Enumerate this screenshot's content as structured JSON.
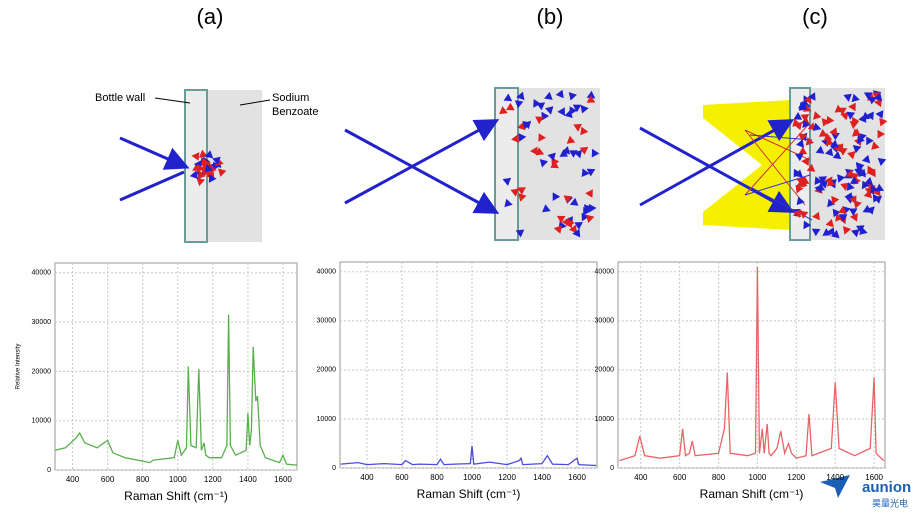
{
  "panel_labels": [
    "(a)",
    "(b)",
    "(c)"
  ],
  "diagram_labels": {
    "bottle_wall": "Bottle wall",
    "sodium_benzoate": "Sodium Benzoate"
  },
  "watermark": {
    "brand": "aunion",
    "subtitle": "昊量光电"
  },
  "chart_data": [
    {
      "type": "line",
      "color": "#5aae4e",
      "xlabel": "Raman Shift (cm⁻¹)",
      "ylabel": "Relative Intensity",
      "grid": true,
      "xlim": [
        300,
        1680
      ],
      "ylim": [
        0,
        42000
      ],
      "xticks": [
        400,
        600,
        800,
        1000,
        1200,
        1400,
        1600
      ],
      "yticks": [
        0,
        10000,
        20000,
        30000,
        40000
      ],
      "x": [
        300,
        360,
        420,
        440,
        470,
        540,
        600,
        630,
        700,
        800,
        840,
        860,
        980,
        1000,
        1020,
        1050,
        1060,
        1075,
        1105,
        1120,
        1135,
        1150,
        1160,
        1180,
        1250,
        1280,
        1290,
        1300,
        1330,
        1390,
        1400,
        1410,
        1420,
        1430,
        1445,
        1455,
        1470,
        1500,
        1580,
        1600,
        1620,
        1680
      ],
      "values": [
        4000,
        4500,
        6500,
        7500,
        5500,
        4500,
        6000,
        3500,
        2500,
        1800,
        1500,
        2000,
        2500,
        6000,
        3000,
        4500,
        21000,
        5000,
        4500,
        20500,
        4000,
        5500,
        3000,
        2500,
        2500,
        5000,
        31500,
        5000,
        3000,
        4000,
        11500,
        5000,
        8000,
        25000,
        14000,
        15000,
        5000,
        2500,
        1500,
        3000,
        1200,
        1000
      ]
    },
    {
      "type": "line",
      "color": "#4a4ae0",
      "xlabel": "Raman Shift (cm⁻¹)",
      "grid": true,
      "xlim": [
        246,
        1714
      ],
      "ylim": [
        0,
        42000
      ],
      "xticks": [
        400,
        600,
        800,
        1000,
        1200,
        1400,
        1600
      ],
      "yticks": [
        0,
        10000,
        20000,
        30000,
        40000
      ],
      "x": [
        250,
        350,
        400,
        500,
        600,
        620,
        660,
        700,
        800,
        820,
        840,
        900,
        990,
        1000,
        1010,
        1100,
        1200,
        1270,
        1280,
        1290,
        1400,
        1430,
        1460,
        1550,
        1600,
        1610,
        1710
      ],
      "values": [
        800,
        1100,
        700,
        900,
        700,
        1500,
        700,
        800,
        700,
        1800,
        700,
        800,
        900,
        4500,
        800,
        1200,
        700,
        1500,
        2000,
        700,
        900,
        2500,
        800,
        700,
        2000,
        700,
        500
      ]
    },
    {
      "type": "line",
      "color": "#e86464",
      "xlabel": "Raman Shift (cm⁻¹)",
      "grid": true,
      "xlim": [
        283,
        1656
      ],
      "ylim": [
        0,
        42000
      ],
      "xticks": [
        400,
        600,
        800,
        1000,
        1200,
        1400,
        1600
      ],
      "yticks": [
        0,
        10000,
        20000,
        30000,
        40000
      ],
      "x": [
        290,
        370,
        395,
        420,
        500,
        600,
        615,
        630,
        650,
        665,
        680,
        800,
        830,
        845,
        860,
        950,
        990,
        1000,
        1010,
        1025,
        1035,
        1050,
        1060,
        1070,
        1100,
        1120,
        1140,
        1160,
        1175,
        1200,
        1250,
        1265,
        1280,
        1380,
        1400,
        1420,
        1500,
        1580,
        1600,
        1610,
        1650
      ],
      "values": [
        1500,
        2500,
        6500,
        2500,
        2000,
        2500,
        8000,
        2500,
        3000,
        5500,
        2500,
        3000,
        8000,
        19500,
        3000,
        2500,
        3000,
        41000,
        3000,
        8000,
        3000,
        9000,
        3000,
        2500,
        4000,
        7500,
        3000,
        5000,
        3000,
        2000,
        2500,
        11000,
        2500,
        4000,
        17500,
        4000,
        2500,
        4000,
        18500,
        3000,
        1500
      ]
    }
  ]
}
